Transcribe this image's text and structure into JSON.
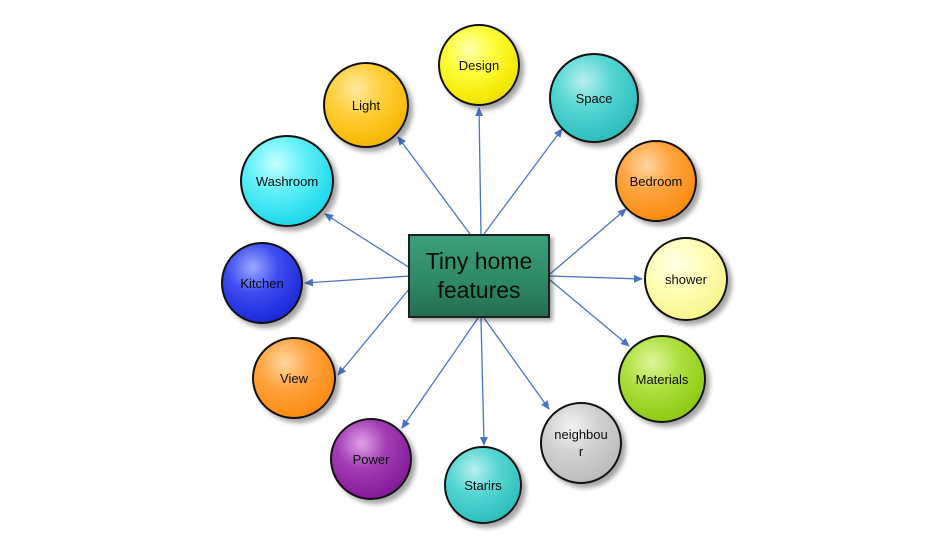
{
  "diagram": {
    "center": {
      "label": "Tiny home\nfeatures",
      "color": "#2f8a66"
    },
    "nodes": [
      {
        "id": "design",
        "label": "Design",
        "color": "#f2e800"
      },
      {
        "id": "light",
        "label": "Light",
        "color": "#f6b800"
      },
      {
        "id": "space",
        "label": "Space",
        "color": "#2ebfbd"
      },
      {
        "id": "washroom",
        "label": "Washroom",
        "color": "#1ed8ea"
      },
      {
        "id": "bedroom",
        "label": "Bedroom",
        "color": "#fb8c10"
      },
      {
        "id": "kitchen",
        "label": "Kitchen",
        "color": "#1c2ad9"
      },
      {
        "id": "shower",
        "label": "shower",
        "color": "#f8f590"
      },
      {
        "id": "view",
        "label": "View",
        "color": "#fb8c10"
      },
      {
        "id": "materials",
        "label": "Materials",
        "color": "#8fcc14"
      },
      {
        "id": "power",
        "label": "Power",
        "color": "#861b99"
      },
      {
        "id": "neighbour",
        "label": "neighbou\nr",
        "color": "#bdbdbd"
      },
      {
        "id": "stairs",
        "label": "Starirs",
        "color": "#2ebfbd"
      }
    ],
    "edges": [
      {
        "from": "center",
        "to": "design"
      },
      {
        "from": "center",
        "to": "light"
      },
      {
        "from": "center",
        "to": "space"
      },
      {
        "from": "center",
        "to": "washroom"
      },
      {
        "from": "center",
        "to": "bedroom"
      },
      {
        "from": "center",
        "to": "kitchen"
      },
      {
        "from": "center",
        "to": "shower"
      },
      {
        "from": "center",
        "to": "view"
      },
      {
        "from": "center",
        "to": "materials"
      },
      {
        "from": "center",
        "to": "power"
      },
      {
        "from": "center",
        "to": "neighbour"
      },
      {
        "from": "center",
        "to": "stairs"
      }
    ],
    "arrow_color": "#4a74c2"
  }
}
